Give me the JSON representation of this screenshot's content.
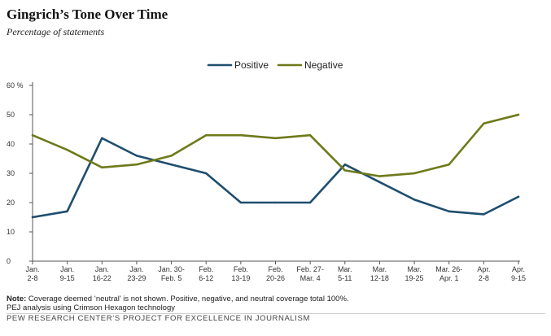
{
  "header": {
    "title": "Gingrich’s Tone Over Time",
    "subtitle": "Percentage of statements"
  },
  "chart_data": {
    "type": "line",
    "title": "Gingrich’s Tone Over Time",
    "subtitle": "Percentage of statements",
    "categories": [
      [
        "Jan.",
        "2-8"
      ],
      [
        "Jan.",
        "9-15"
      ],
      [
        "Jan.",
        "16-22"
      ],
      [
        "Jan.",
        "23-29"
      ],
      [
        "Jan. 30-",
        "Feb. 5"
      ],
      [
        "Feb.",
        "6-12"
      ],
      [
        "Feb.",
        "13-19"
      ],
      [
        "Feb.",
        "20-26"
      ],
      [
        "Feb. 27-",
        "Mar. 4"
      ],
      [
        "Mar.",
        "5-11"
      ],
      [
        "Mar.",
        "12-18"
      ],
      [
        "Mar.",
        "19-25"
      ],
      [
        "Mar. 26-",
        "Apr. 1"
      ],
      [
        "Apr.",
        "2-8"
      ],
      [
        "Apr.",
        "9-15"
      ]
    ],
    "series": [
      {
        "name": "Positive",
        "color": "#1f4e6e",
        "values": [
          15,
          17,
          42,
          36,
          33,
          30,
          20,
          20,
          20,
          33,
          27,
          21,
          17,
          16,
          22
        ]
      },
      {
        "name": "Negative",
        "color": "#6e7a1a",
        "values": [
          43,
          38,
          32,
          33,
          36,
          43,
          43,
          42,
          43,
          31,
          29,
          30,
          33,
          47,
          50
        ]
      }
    ],
    "ylim": [
      0,
      60
    ],
    "yticks": [
      0,
      10,
      20,
      30,
      40,
      50,
      60
    ],
    "ytick_labels": [
      "0",
      "10",
      "20",
      "30",
      "40",
      "50",
      "60 %"
    ],
    "grid": false,
    "legend_position": "top-center"
  },
  "footer": {
    "note_label": "Note:",
    "note_text": " Coverage deemed ‘neutral’ is not shown. Positive, negative, and neutral coverage total 100%.",
    "analysis": "PEJ analysis using Crimson Hexagon technology",
    "source": "PEW RESEARCH CENTER’S PROJECT FOR EXCELLENCE IN JOURNALISM"
  }
}
